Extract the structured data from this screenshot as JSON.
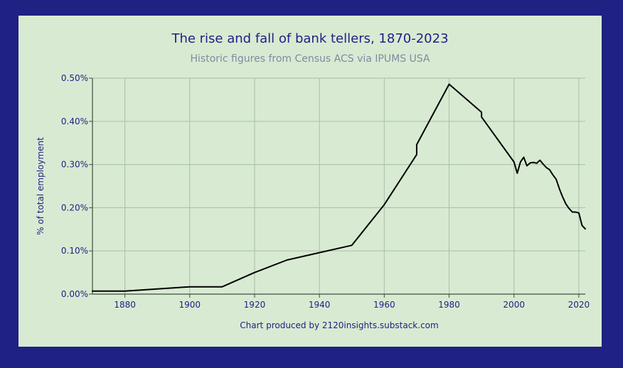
{
  "chart_data": {
    "type": "line",
    "title": "The rise and fall of bank tellers, 1870-2023",
    "subtitle": "Historic figures from Census ACS via IPUMS USA",
    "xlabel": "",
    "ylabel": "% of total employment",
    "credit": "Chart produced by 2120insights.substack.com",
    "xlim": [
      1870,
      2022
    ],
    "ylim": [
      0,
      0.5
    ],
    "x_ticks": [
      1880,
      1900,
      1920,
      1940,
      1960,
      1980,
      2000,
      2020
    ],
    "x_tick_labels": [
      "1880",
      "1900",
      "1920",
      "1940",
      "1960",
      "1980",
      "2000",
      "2020"
    ],
    "y_ticks": [
      0,
      0.1,
      0.2,
      0.3,
      0.4,
      0.5
    ],
    "y_tick_labels": [
      "0.00%",
      "0.10%",
      "0.20%",
      "0.30%",
      "0.40%",
      "0.50%"
    ],
    "grid": true,
    "legend": "none",
    "colors": {
      "background": "#1f2183",
      "plot_background": "#d9ead3",
      "line": "#000000",
      "grid": "#aec5ae",
      "text": "#1f2183",
      "subtitle": "#7f8aa0"
    },
    "series": [
      {
        "x": [
          1870,
          1880,
          1900,
          1910,
          1920,
          1930,
          1940,
          1950,
          1960,
          1970,
          1970,
          1980,
          1990,
          1990,
          2000,
          2001,
          2002,
          2003,
          2004,
          2005,
          2006,
          2007,
          2008,
          2009,
          2010,
          2011,
          2012,
          2013,
          2014,
          2015,
          2016,
          2017,
          2018,
          2019,
          2020,
          2021,
          2022
        ],
        "values": [
          0.007,
          0.007,
          0.017,
          0.017,
          0.05,
          0.079,
          0.096,
          0.113,
          0.207,
          0.323,
          0.346,
          0.486,
          0.421,
          0.41,
          0.306,
          0.28,
          0.306,
          0.317,
          0.297,
          0.304,
          0.305,
          0.303,
          0.31,
          0.301,
          0.293,
          0.288,
          0.276,
          0.266,
          0.244,
          0.225,
          0.209,
          0.198,
          0.19,
          0.19,
          0.188,
          0.159,
          0.151
        ]
      }
    ]
  }
}
